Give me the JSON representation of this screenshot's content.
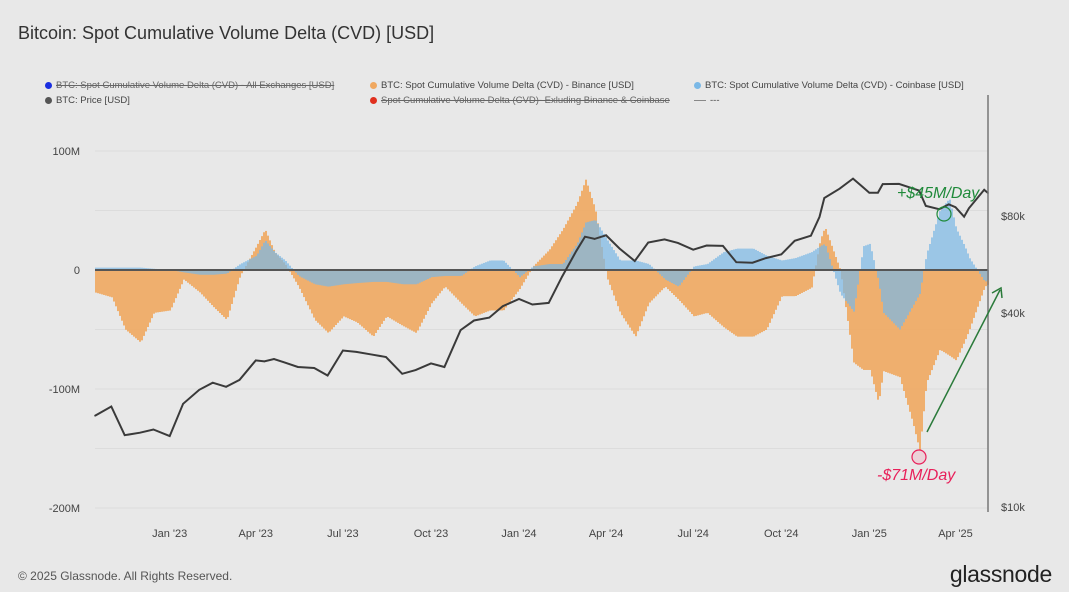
{
  "title": "Bitcoin: Spot Cumulative Volume Delta (CVD) [USD]",
  "footer": "© 2025 Glassnode. All Rights Reserved.",
  "logo": "glassnode",
  "legend": [
    {
      "label": "BTC: Spot Cumulative Volume Delta (CVD) - All Exchanges [USD]",
      "color": "#1a2ee0",
      "disabled": true
    },
    {
      "label": "BTC: Spot Cumulative Volume Delta (CVD) - Binance [USD]",
      "color": "#f0a860",
      "disabled": false
    },
    {
      "label": "BTC: Spot Cumulative Volume Delta (CVD) - Coinbase [USD]",
      "color": "#7ab8e6",
      "disabled": false
    },
    {
      "label": "BTC: Price [USD]",
      "color": "#555555",
      "disabled": false
    },
    {
      "label": "Spot Cumulative Volume Delta (CVD)- Exluding Binance & Coinbase",
      "color": "#e0301e",
      "disabled": true
    },
    {
      "label": "---",
      "color": "#888888",
      "disabled": false
    }
  ],
  "annotations": {
    "positive": {
      "text": "+$45M/Day",
      "color": "#1f8a3a"
    },
    "negative": {
      "text": "-$71M/Day",
      "color": "#e8205a"
    }
  },
  "chart_data": {
    "type": "bar",
    "x_axis": {
      "ticks": [
        "Jan '23",
        "Apr '23",
        "Jul '23",
        "Oct '23",
        "Jan '24",
        "Apr '24",
        "Jul '24",
        "Oct '24",
        "Jan '25",
        "Apr '25"
      ]
    },
    "y_left": {
      "ticks": [
        "100M",
        "0",
        "-100M",
        "-200M"
      ],
      "range": [
        -200,
        100
      ],
      "unit": "M USD"
    },
    "y_right": {
      "ticks": [
        "$80k",
        "$40k",
        "$10k"
      ],
      "scale": "log",
      "range": [
        10000,
        150000
      ]
    },
    "grid": true,
    "legend_position": "top",
    "dates": [
      "2022-10-15",
      "2022-11-01",
      "2022-11-15",
      "2022-12-01",
      "2022-12-15",
      "2023-01-01",
      "2023-01-15",
      "2023-02-01",
      "2023-02-15",
      "2023-03-01",
      "2023-03-15",
      "2023-04-01",
      "2023-04-10",
      "2023-04-20",
      "2023-05-01",
      "2023-05-15",
      "2023-06-01",
      "2023-06-15",
      "2023-07-01",
      "2023-07-15",
      "2023-08-01",
      "2023-08-15",
      "2023-09-01",
      "2023-09-15",
      "2023-10-01",
      "2023-10-15",
      "2023-11-01",
      "2023-11-15",
      "2023-12-01",
      "2023-12-15",
      "2024-01-01",
      "2024-01-15",
      "2024-02-01",
      "2024-02-15",
      "2024-03-01",
      "2024-03-10",
      "2024-03-20",
      "2024-04-01",
      "2024-04-15",
      "2024-05-01",
      "2024-05-15",
      "2024-06-01",
      "2024-06-15",
      "2024-07-01",
      "2024-07-15",
      "2024-08-01",
      "2024-08-15",
      "2024-09-01",
      "2024-09-15",
      "2024-10-01",
      "2024-10-15",
      "2024-11-01",
      "2024-11-10",
      "2024-11-15",
      "2024-12-01",
      "2024-12-15",
      "2024-12-25",
      "2025-01-01",
      "2025-01-10",
      "2025-01-15",
      "2025-02-01",
      "2025-02-15",
      "2025-02-22",
      "2025-03-01",
      "2025-03-15",
      "2025-03-25",
      "2025-04-01",
      "2025-04-10",
      "2025-04-15",
      "2025-05-01",
      "2025-05-05"
    ],
    "series": [
      {
        "name": "BTC: Spot Cumulative Volume Delta (CVD) - Binance [USD]",
        "axis": "left",
        "style": "bar",
        "values": [
          -19,
          -23,
          -50,
          -61,
          -36,
          -34,
          -8,
          -19,
          -31,
          -42,
          -5,
          20,
          34,
          15,
          5,
          -14,
          -42,
          -53,
          -39,
          -44,
          -56,
          -39,
          -47,
          -53,
          -28,
          -14,
          -28,
          -39,
          -34,
          -34,
          -16,
          3,
          17,
          34,
          56,
          76,
          51,
          -6,
          -36,
          -56,
          -28,
          -14,
          -25,
          -39,
          -36,
          -48,
          -56,
          -56,
          -50,
          -22,
          -22,
          -15,
          25,
          36,
          0,
          -78,
          -84,
          -84,
          -112,
          -85,
          -90,
          -129,
          -152,
          -95,
          -67,
          -72,
          -76,
          -60,
          -50,
          -14,
          -12
        ]
      },
      {
        "name": "BTC: Spot Cumulative Volume Delta (CVD) - Coinbase [USD]",
        "axis": "left",
        "style": "bar",
        "values": [
          2,
          2,
          2,
          2,
          1,
          0,
          -2,
          -4,
          -4,
          -3,
          5,
          12,
          25,
          15,
          8,
          -5,
          -12,
          -14,
          -12,
          -11,
          -10,
          -10,
          -12,
          -12,
          -6,
          -5,
          -5,
          3,
          8,
          8,
          -6,
          3,
          5,
          5,
          22,
          40,
          42,
          26,
          8,
          8,
          5,
          -8,
          -14,
          3,
          5,
          15,
          18,
          18,
          12,
          8,
          10,
          15,
          20,
          22,
          -20,
          -35,
          20,
          22,
          -10,
          -36,
          -50,
          -30,
          -20,
          13,
          50,
          60,
          35,
          20,
          10,
          -10,
          -8
        ]
      },
      {
        "name": "BTC: Price [USD]",
        "axis": "right",
        "style": "line",
        "values": [
          19200,
          20500,
          16700,
          17000,
          17400,
          16600,
          20900,
          23100,
          24300,
          23600,
          24800,
          28500,
          28300,
          28800,
          28100,
          27200,
          27000,
          25600,
          30600,
          30300,
          29700,
          29200,
          25900,
          26600,
          27900,
          27200,
          35400,
          37900,
          38700,
          42000,
          44200,
          42500,
          43000,
          51900,
          62400,
          69000,
          67900,
          69700,
          63400,
          58000,
          66200,
          67700,
          66000,
          62900,
          64800,
          64600,
          57500,
          57300,
          59200,
          60800,
          67000,
          69500,
          79500,
          91000,
          97200,
          104500,
          98500,
          94400,
          94500,
          100500,
          100600,
          97500,
          96000,
          86000,
          84000,
          87000,
          85200,
          79600,
          84500,
          96500,
          94300
        ]
      }
    ]
  }
}
